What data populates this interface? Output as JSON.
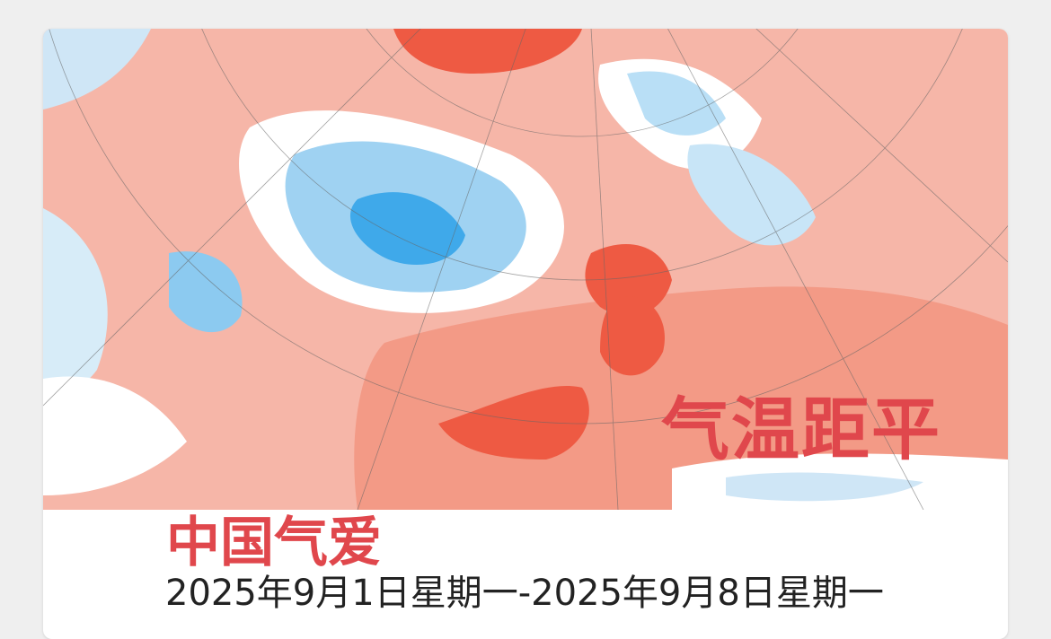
{
  "map": {
    "overlay_label": "气温距平"
  },
  "card": {
    "title": "中国气爱",
    "date_range": "2025年9月1日星期一-2025年9月8日星期一"
  }
}
